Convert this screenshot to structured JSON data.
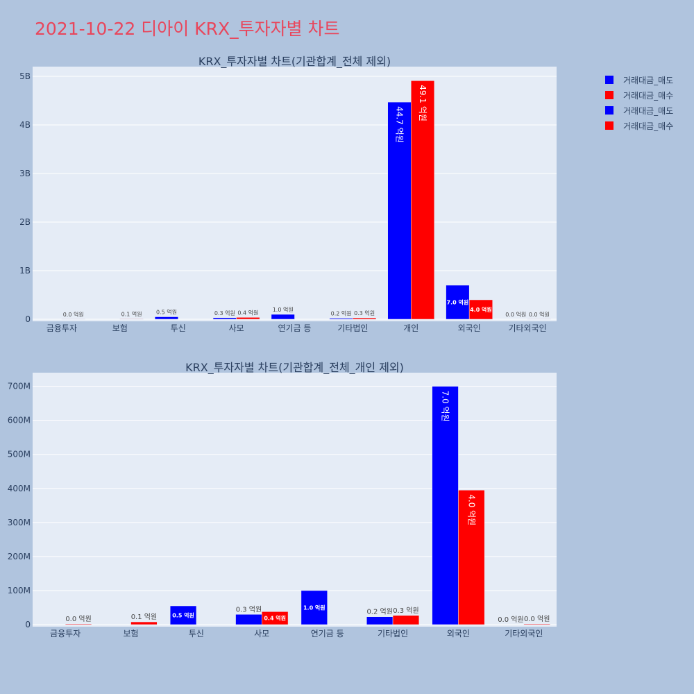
{
  "page_title": "2021-10-22 디아이 KRX_투자자별 차트",
  "legend": [
    {
      "name": "거래대금_매도",
      "color": "#0000ff"
    },
    {
      "name": "거래대금_매수",
      "color": "#ff0000"
    },
    {
      "name": "거래대금_매도",
      "color": "#0000ff"
    },
    {
      "name": "거래대금_매수",
      "color": "#ff0000"
    }
  ],
  "chart_data": [
    {
      "type": "bar",
      "title": "KRX_투자자별 차트(기관합계_전체 제외)",
      "categories": [
        "금융투자",
        "보험",
        "투신",
        "사모",
        "연기금 등",
        "기타법인",
        "개인",
        "외국인",
        "기타외국인"
      ],
      "ylim": [
        0,
        5200000000
      ],
      "yticks": [
        0,
        1000000000,
        2000000000,
        3000000000,
        4000000000,
        5000000000
      ],
      "ytick_labels": [
        "0",
        "1B",
        "2B",
        "3B",
        "4B",
        "5B"
      ],
      "series": [
        {
          "name": "거래대금_매도",
          "color": "#0000ff",
          "values": [
            0,
            0,
            50000000,
            30000000,
            100000000,
            20000000,
            4470000000,
            700000000,
            0
          ],
          "labels": [
            "",
            "",
            "0.5 억원",
            "0.3 억원",
            "1.0 억원",
            "0.2 억원",
            "44.7 억원",
            "7.0 억원",
            "0.0 억원"
          ]
        },
        {
          "name": "거래대금_매수",
          "color": "#ff0000",
          "values": [
            2000000,
            8000000,
            0,
            38000000,
            0,
            27000000,
            4910000000,
            400000000,
            2000000
          ],
          "labels": [
            "0.0 억원",
            "0.1 억원",
            "",
            "0.4 억원",
            "",
            "0.3 억원",
            "49.1 억원",
            "4.0 억원",
            "0.0 억원"
          ]
        }
      ]
    },
    {
      "type": "bar",
      "title": "KRX_투자자별 차트(기관합계_전체_개인 제외)",
      "categories": [
        "금융투자",
        "보험",
        "투신",
        "사모",
        "연기금 등",
        "기타법인",
        "외국인",
        "기타외국인"
      ],
      "ylim": [
        0,
        740000000
      ],
      "yticks": [
        0,
        100000000,
        200000000,
        300000000,
        400000000,
        500000000,
        600000000,
        700000000
      ],
      "ytick_labels": [
        "0",
        "100M",
        "200M",
        "300M",
        "400M",
        "500M",
        "600M",
        "700M"
      ],
      "series": [
        {
          "name": "거래대금_매도",
          "color": "#0000ff",
          "values": [
            0,
            0,
            55000000,
            30000000,
            100000000,
            23000000,
            700000000,
            0
          ],
          "labels": [
            "",
            "",
            "0.5 억원",
            "0.3 억원",
            "1.0 억원",
            "0.2 억원",
            "7.0 억원",
            "0.0 억원"
          ]
        },
        {
          "name": "거래대금_매수",
          "color": "#ff0000",
          "values": [
            2000000,
            8000000,
            0,
            38000000,
            0,
            27000000,
            395000000,
            2000000
          ],
          "labels": [
            "0.0 억원",
            "0.1 억원",
            "",
            "0.4 억원",
            "",
            "0.3 억원",
            "4.0 억원",
            "0.0 억원"
          ]
        }
      ]
    }
  ]
}
